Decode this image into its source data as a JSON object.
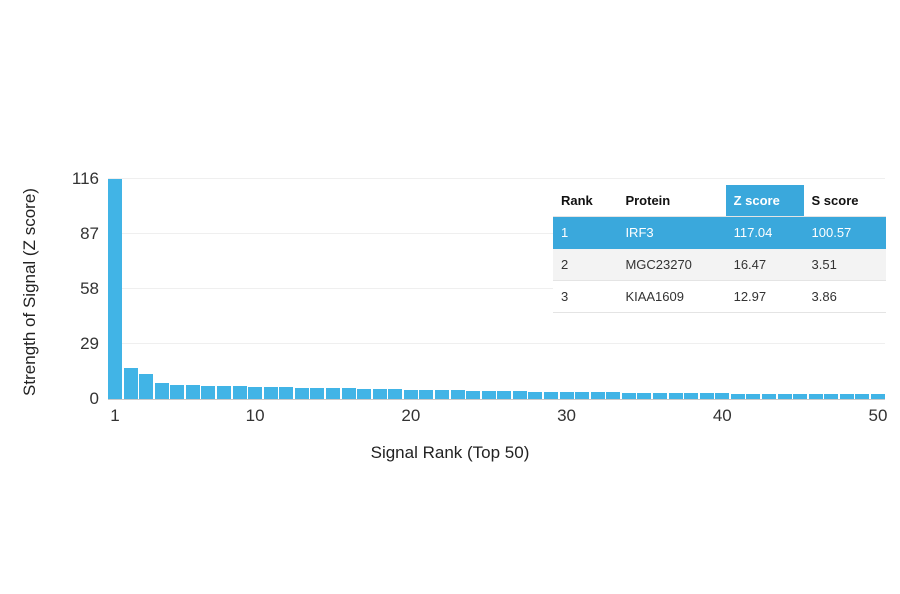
{
  "chart_data": {
    "type": "bar",
    "title": "",
    "xlabel": "Signal Rank (Top 50)",
    "ylabel": "Strength of Signal (Z score)",
    "ylim": [
      0,
      116
    ],
    "yticks": [
      0,
      29,
      58,
      87,
      116
    ],
    "xticks": [
      1,
      10,
      20,
      30,
      40,
      50
    ],
    "grid": true,
    "bar_color": "#41B4E6",
    "categories": [
      1,
      2,
      3,
      4,
      5,
      6,
      7,
      8,
      9,
      10,
      11,
      12,
      13,
      14,
      15,
      16,
      17,
      18,
      19,
      20,
      21,
      22,
      23,
      24,
      25,
      26,
      27,
      28,
      29,
      30,
      31,
      32,
      33,
      34,
      35,
      36,
      37,
      38,
      39,
      40,
      41,
      42,
      43,
      44,
      45,
      46,
      47,
      48,
      49,
      50
    ],
    "values": [
      117.04,
      16.47,
      12.97,
      8.2,
      7.6,
      7.3,
      7.0,
      6.8,
      6.6,
      6.5,
      6.3,
      6.1,
      6.0,
      5.9,
      5.7,
      5.6,
      5.5,
      5.3,
      5.2,
      5.0,
      4.9,
      4.7,
      4.6,
      4.4,
      4.3,
      4.2,
      4.0,
      3.9,
      3.8,
      3.7,
      3.6,
      3.5,
      3.5,
      3.4,
      3.3,
      3.2,
      3.2,
      3.1,
      3.0,
      3.0,
      2.9,
      2.9,
      2.8,
      2.8,
      2.7,
      2.7,
      2.6,
      2.6,
      2.5,
      2.5
    ]
  },
  "table": {
    "headers": [
      "Rank",
      "Protein",
      "Z score",
      "S score"
    ],
    "highlight_color": "#3AA8DC",
    "rows": [
      {
        "rank": "1",
        "protein": "IRF3",
        "z_score": "117.04",
        "s_score": "100.57"
      },
      {
        "rank": "2",
        "protein": "MGC23270",
        "z_score": "16.47",
        "s_score": "3.51"
      },
      {
        "rank": "3",
        "protein": "KIAA1609",
        "z_score": "12.97",
        "s_score": "3.86"
      }
    ]
  }
}
